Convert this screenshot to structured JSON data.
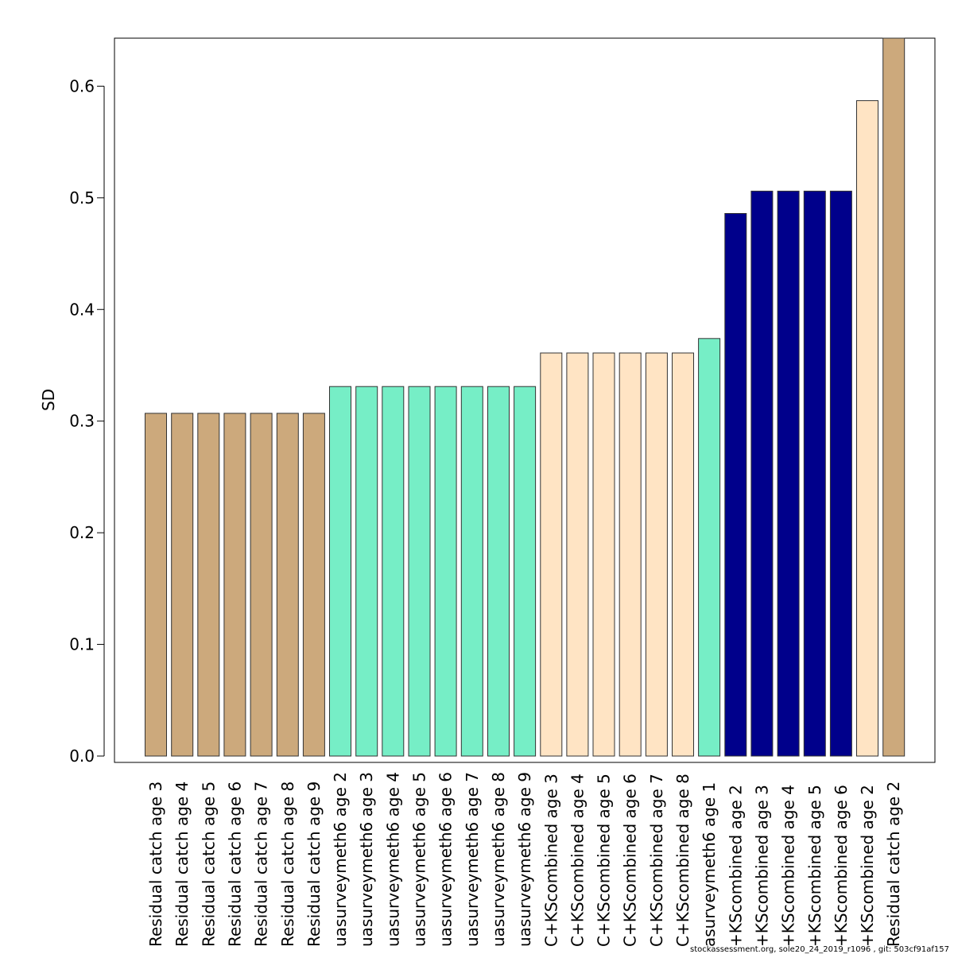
{
  "chart_data": {
    "type": "bar",
    "ylabel": "SD",
    "xlabel": "",
    "ylim": [
      0,
      0.643
    ],
    "yticks": [
      "0.0",
      "0.1",
      "0.2",
      "0.3",
      "0.4",
      "0.5",
      "0.6"
    ],
    "grid": false,
    "categories": [
      "Residual catch age 3",
      "Residual catch age 4",
      "Residual catch age 5",
      "Residual catch age 6",
      "Residual catch age 7",
      "Residual catch age 8",
      "Residual catch age 9",
      "uasurveymeth6 age 2",
      "uasurveymeth6 age 3",
      "uasurveymeth6 age 4",
      "uasurveymeth6 age 5",
      "uasurveymeth6 age 6",
      "uasurveymeth6 age 7",
      "uasurveymeth6 age 8",
      "uasurveymeth6 age 9",
      "C+KScombined age 3",
      "C+KScombined age 4",
      "C+KScombined age 5",
      "C+KScombined age 6",
      "C+KScombined age 7",
      "C+KScombined age 8",
      "asurveymeth6 age 1",
      "+KScombined age 2",
      "+KScombined age 3",
      "+KScombined age 4",
      "+KScombined age 5",
      "+KScombined age 6",
      "+KScombined age 2",
      "Residual catch age 2"
    ],
    "values": [
      0.307,
      0.307,
      0.307,
      0.307,
      0.307,
      0.307,
      0.307,
      0.331,
      0.331,
      0.331,
      0.331,
      0.331,
      0.331,
      0.331,
      0.331,
      0.361,
      0.361,
      0.361,
      0.361,
      0.361,
      0.361,
      0.374,
      0.486,
      0.506,
      0.506,
      0.506,
      0.506,
      0.587,
      0.643
    ],
    "bar_colors": [
      "#cca97c",
      "#cca97c",
      "#cca97c",
      "#cca97c",
      "#cca97c",
      "#cca97c",
      "#cca97c",
      "#76eec6",
      "#76eec6",
      "#76eec6",
      "#76eec6",
      "#76eec6",
      "#76eec6",
      "#76eec6",
      "#76eec6",
      "#ffe4c4",
      "#ffe4c4",
      "#ffe4c4",
      "#ffe4c4",
      "#ffe4c4",
      "#ffe4c4",
      "#76eec6",
      "#00008b",
      "#00008b",
      "#00008b",
      "#00008b",
      "#00008b",
      "#ffe4c4",
      "#cca97c"
    ]
  },
  "footer": "stockassessment.org, sole20_24_2019_r1096 , git: 503cf91af157"
}
